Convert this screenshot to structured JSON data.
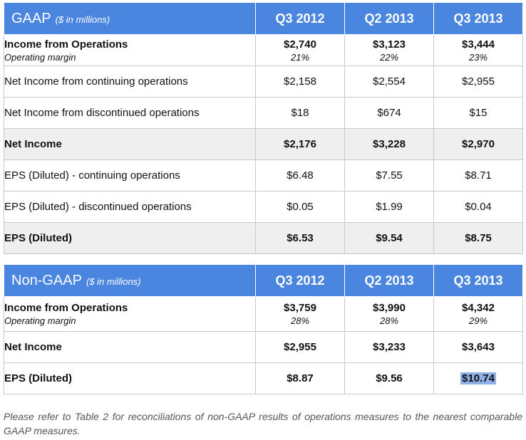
{
  "gaap": {
    "title": "GAAP",
    "unit": "($ in millions)",
    "columns": [
      "Q3 2012",
      "Q2 2013",
      "Q3 2013"
    ],
    "rows": [
      {
        "label": "Income from Operations",
        "sublabel": "Operating margin",
        "values": [
          "$2,740",
          "$3,123",
          "$3,444"
        ],
        "subvalues": [
          "21%",
          "22%",
          "23%"
        ]
      },
      {
        "label": "Net Income from continuing operations",
        "values": [
          "$2,158",
          "$2,554",
          "$2,955"
        ]
      },
      {
        "label": "Net Income from discontinued operations",
        "values": [
          "$18",
          "$674",
          "$15"
        ]
      },
      {
        "label": "Net Income",
        "values": [
          "$2,176",
          "$3,228",
          "$2,970"
        ]
      },
      {
        "label": "EPS (Diluted) - continuing operations",
        "values": [
          "$6.48",
          "$7.55",
          "$8.71"
        ]
      },
      {
        "label": "EPS (Diluted) - discontinued operations",
        "values": [
          "$0.05",
          "$1.99",
          "$0.04"
        ]
      },
      {
        "label": "EPS (Diluted)",
        "values": [
          "$6.53",
          "$9.54",
          "$8.75"
        ]
      }
    ]
  },
  "nongaap": {
    "title": "Non-GAAP",
    "unit": "($ in millions)",
    "columns": [
      "Q3 2012",
      "Q2 2013",
      "Q3 2013"
    ],
    "rows": [
      {
        "label": "Income from Operations",
        "sublabel": "Operating margin",
        "values": [
          "$3,759",
          "$3,990",
          "$4,342"
        ],
        "subvalues": [
          "28%",
          "28%",
          "29%"
        ]
      },
      {
        "label": "Net Income",
        "values": [
          "$2,955",
          "$3,233",
          "$3,643"
        ]
      },
      {
        "label": "EPS (Diluted)",
        "values": [
          "$8.87",
          "$9.56",
          "$10.74"
        ]
      }
    ]
  },
  "footnote": "Please refer to Table 2 for reconciliations of non-GAAP results of operations measures to the nearest comparable GAAP measures."
}
